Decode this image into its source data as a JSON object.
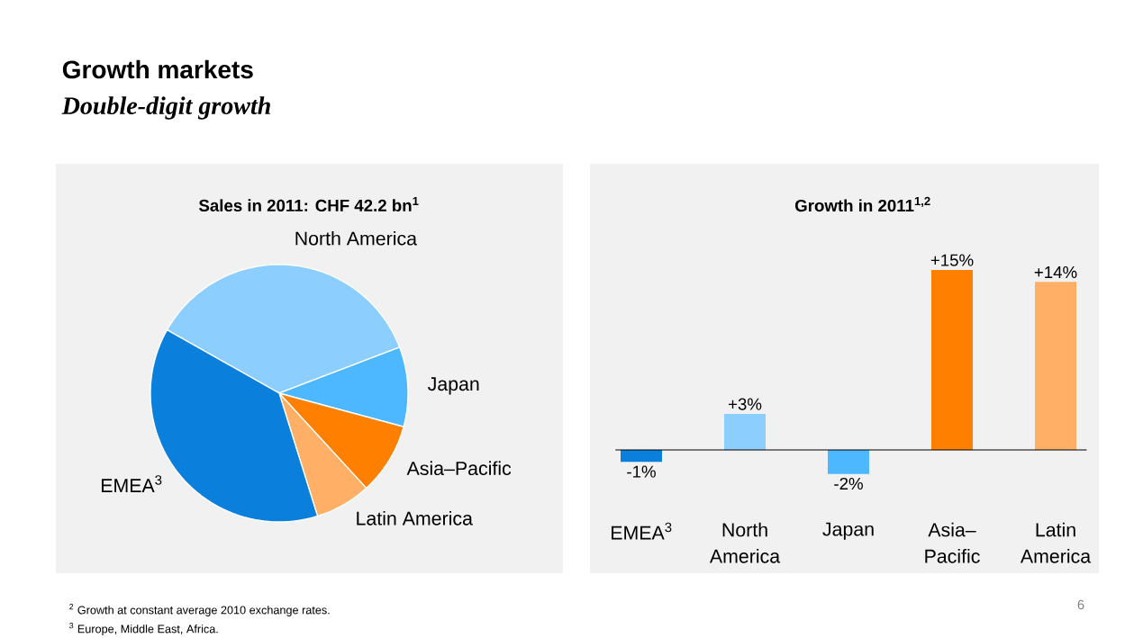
{
  "chart_data": [
    {
      "type": "other",
      "title": "Growth markets",
      "subtitle": "Double-digit growth",
      "annotations": [
        "$^{2}$ Growth at constant average 2010 exchange rates.",
        "$^{3}$ Europe, Middle East, Africa.",
        "6"
      ]
    },
    {
      "type": "pie",
      "title": "Sales in 2011: CHF 42.2 bn$^{1}$",
      "categories": [
        "North America",
        "Japan",
        "Asia–Pacific",
        "Latin America",
        "EMEA$^{3}$"
      ],
      "values": [
        36,
        10,
        9,
        7,
        38
      ],
      "colors": [
        "#8ccfff",
        "#4db8ff",
        "#ff8000",
        "#ffb066",
        "#0a80dc"
      ]
    },
    {
      "type": "bar",
      "title": "Growth in 2011$^{1,2}$",
      "categories": [
        "EMEA$^{3}$",
        "North America",
        "Japan",
        "Asia–Pacific",
        "Latin America"
      ],
      "values": [
        -1,
        3,
        -2,
        15,
        14
      ],
      "value_labels": [
        "-1%",
        "+3%",
        "-2%",
        "+15%",
        "+14%"
      ],
      "colors": [
        "#0a80dc",
        "#8ccfff",
        "#4db8ff",
        "#ff8000",
        "#ffb066"
      ]
    }
  ]
}
